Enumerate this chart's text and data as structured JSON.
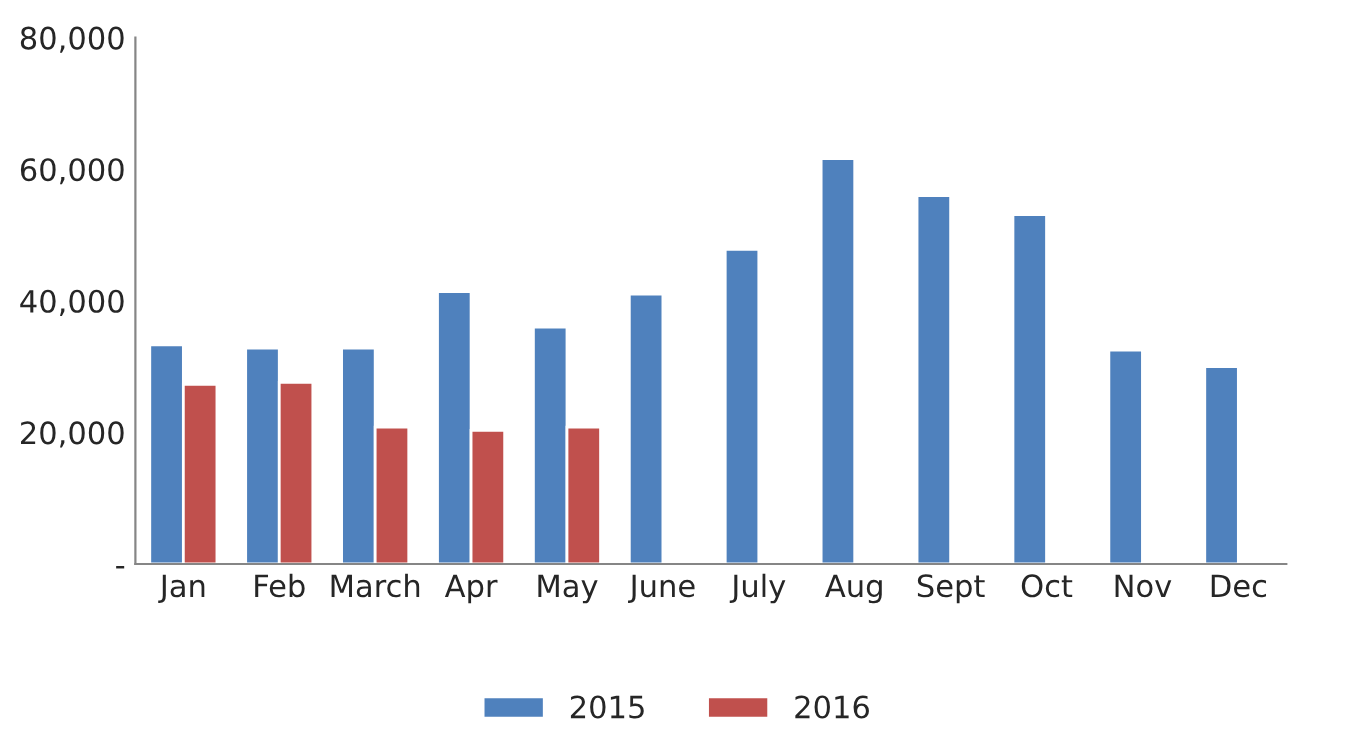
{
  "chart_data": {
    "type": "bar",
    "categories": [
      "Jan",
      "Feb",
      "March",
      "Apr",
      "May",
      "June",
      "July",
      "Aug",
      "Sept",
      "Oct",
      "Nov",
      "Dec"
    ],
    "series": [
      {
        "name": "2015",
        "color": "#4f81bd",
        "values": [
          33300,
          32800,
          32800,
          41400,
          36000,
          41000,
          47800,
          61600,
          56000,
          53100,
          32500,
          30000
        ]
      },
      {
        "name": "2016",
        "color": "#c0504d",
        "values": [
          27300,
          27600,
          20800,
          20300,
          20800,
          null,
          null,
          null,
          null,
          null,
          null,
          null
        ]
      }
    ],
    "ylim": [
      0,
      80000
    ],
    "yticks": [
      {
        "value": 0,
        "label": "-"
      },
      {
        "value": 20000,
        "label": "20,000"
      },
      {
        "value": 40000,
        "label": "40,000"
      },
      {
        "value": 60000,
        "label": "60,000"
      },
      {
        "value": 80000,
        "label": "80,000"
      }
    ],
    "grid": false,
    "legend": "bottom"
  }
}
